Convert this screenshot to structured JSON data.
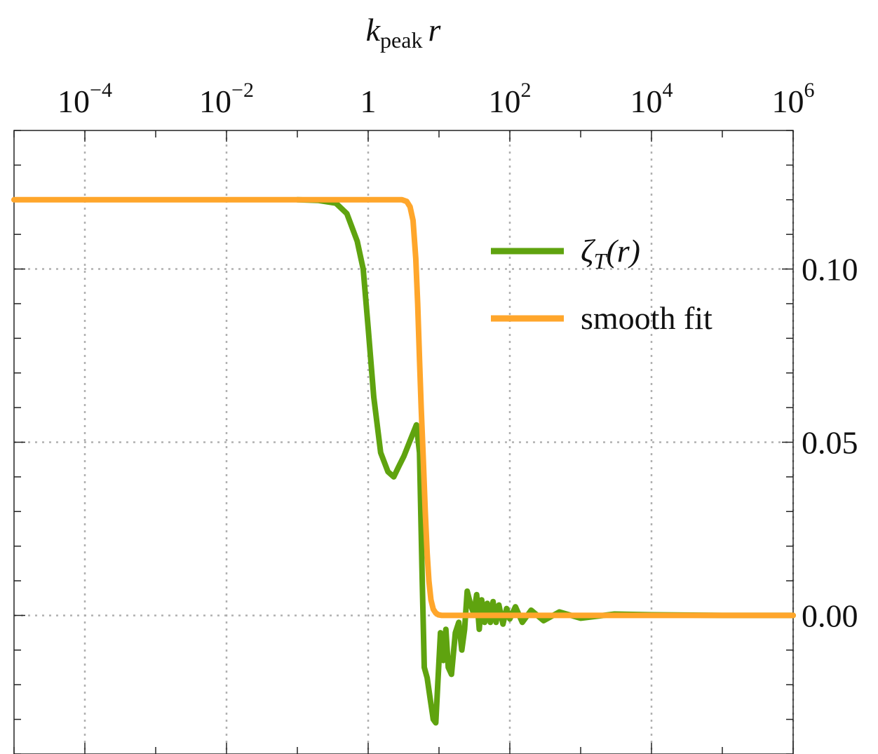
{
  "chart_data": {
    "type": "line",
    "title": "",
    "xlabel": {
      "main": "k",
      "subscript": "peak",
      "variable": "r"
    },
    "ylabel": "",
    "x_scale": "log",
    "xlim": [
      1e-05,
      1000000
    ],
    "ylim": [
      -0.04,
      0.14
    ],
    "x_ticks": [
      {
        "value": 0.0001,
        "base": "10",
        "exp": "−4"
      },
      {
        "value": 0.01,
        "base": "10",
        "exp": "−2"
      },
      {
        "value": 1,
        "base": "1",
        "exp": ""
      },
      {
        "value": 100,
        "base": "10",
        "exp": "2"
      },
      {
        "value": 10000,
        "base": "10",
        "exp": "4"
      },
      {
        "value": 1000000,
        "base": "10",
        "exp": "6"
      }
    ],
    "y_ticks": [
      {
        "value": 0.0,
        "label": "0.00"
      },
      {
        "value": 0.05,
        "label": "0.05"
      },
      {
        "value": 0.1,
        "label": "0.10"
      }
    ],
    "grid": true,
    "legend_position": "top-right",
    "series": [
      {
        "name": "ζT(r)",
        "legend": {
          "main": "ζ",
          "subscript": "T",
          "suffix": "(r)"
        },
        "color": "#5fa30f",
        "x": [
          0.1,
          0.2,
          0.35,
          0.5,
          0.7,
          0.85,
          1.0,
          1.2,
          1.5,
          1.9,
          2.3,
          2.7,
          3.2,
          4.0,
          4.8,
          5.3,
          5.8,
          6.2,
          6.8,
          7.5,
          8.3,
          9.0,
          9.6,
          10.5,
          11.5,
          12.5,
          13.5,
          15,
          17,
          19,
          21,
          23,
          25,
          28,
          31,
          34,
          37,
          40,
          44,
          48,
          53,
          58,
          64,
          70,
          80,
          90,
          100,
          120,
          150,
          200,
          300,
          500,
          1000,
          3000,
          10000,
          100000,
          1000000
        ],
        "y": [
          0.12,
          0.1198,
          0.119,
          0.116,
          0.108,
          0.1,
          0.083,
          0.063,
          0.047,
          0.0415,
          0.04,
          0.043,
          0.046,
          0.051,
          0.055,
          0.047,
          0.01,
          -0.015,
          -0.018,
          -0.024,
          -0.03,
          -0.031,
          -0.02,
          -0.005,
          -0.013,
          -0.004,
          -0.015,
          -0.017,
          -0.005,
          -0.002,
          -0.01,
          -0.004,
          0.007,
          0.003,
          0.0005,
          0.006,
          -0.004,
          0.0045,
          -0.002,
          0.0035,
          -0.002,
          0.004,
          -0.002,
          0.003,
          -0.0025,
          0.002,
          -0.001,
          0.0025,
          -0.002,
          0.0015,
          -0.0015,
          0.001,
          -0.0008,
          0.0004,
          0.0002,
          0.0,
          0.0
        ]
      },
      {
        "name": "smooth fit",
        "legend": {
          "main": "smooth fit",
          "subscript": "",
          "suffix": ""
        },
        "color": "#ffa62b",
        "x": [
          1e-05,
          1.0,
          3.0,
          3.5,
          3.9,
          4.3,
          4.7,
          5.0,
          5.3,
          5.6,
          6.0,
          6.4,
          6.8,
          7.2,
          7.7,
          8.3,
          9.0,
          9.8,
          11.0,
          14.0,
          30,
          1000000
        ],
        "y": [
          0.12,
          0.12,
          0.12,
          0.1195,
          0.118,
          0.114,
          0.103,
          0.09,
          0.074,
          0.06,
          0.045,
          0.03,
          0.018,
          0.01,
          0.0045,
          0.0018,
          0.0007,
          0.0002,
          0.0,
          0.0,
          0.0,
          0.0
        ]
      }
    ]
  }
}
